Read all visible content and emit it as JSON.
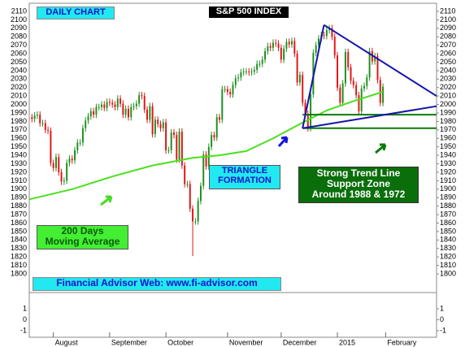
{
  "chart_data": {
    "type": "candlestick",
    "title": "S&P 500 INDEX",
    "subtitle": "DAILY CHART",
    "up_color": "#1f8f1f",
    "down_color": "#e01515",
    "xlim": [
      -1,
      151
    ],
    "ylim": [
      1795,
      2115
    ],
    "yticks": [
      1800,
      1810,
      1820,
      1830,
      1840,
      1850,
      1860,
      1870,
      1880,
      1890,
      1900,
      1910,
      1920,
      1930,
      1940,
      1950,
      1960,
      1970,
      1980,
      1990,
      2000,
      2010,
      2020,
      2030,
      2040,
      2050,
      2060,
      2070,
      2080,
      2090,
      2100,
      2110
    ],
    "xticks": [
      {
        "value": 8,
        "label": "August"
      },
      {
        "value": 29,
        "label": "September"
      },
      {
        "value": 50,
        "label": "October"
      },
      {
        "value": 73,
        "label": "November"
      },
      {
        "value": 93,
        "label": "December"
      },
      {
        "value": 114,
        "label": "2015"
      },
      {
        "value": 132,
        "label": "February"
      }
    ],
    "lower_panel": {
      "ylim": [
        -1.6,
        2.4
      ],
      "yticks": [
        1,
        0,
        -1
      ]
    },
    "open": [
      1985,
      1983,
      1987,
      1988,
      1978,
      1978,
      1970,
      1969,
      1931,
      1925,
      1938,
      1920,
      1909,
      1910,
      1931,
      1936,
      1934,
      1946,
      1955,
      1955,
      1972,
      1981,
      1986,
      1992,
      1988,
      1997,
      1997,
      2000,
      1996,
      2003,
      2002,
      2000,
      1997,
      2007,
      2001,
      1988,
      1995,
      1985,
      1997,
      1998,
      2001,
      2011,
      2010,
      1994,
      1982,
      1998,
      1965,
      1982,
      1977,
      1972,
      1979,
      1946,
      1946,
      1967,
      1964,
      1935,
      1968,
      1928,
      1906,
      1906,
      1877,
      1862,
      1862,
      1886,
      1904,
      1941,
      1927,
      1950,
      1964,
      1961,
      1985,
      1982,
      2018,
      2018,
      2015,
      2012,
      2023,
      2031,
      2032,
      2038,
      2039,
      2039,
      2038,
      2039,
      2041,
      2048,
      2048,
      2053,
      2063,
      2069,
      2067,
      2073,
      2072,
      2067,
      2053,
      2066,
      2074,
      2071,
      2075,
      2060,
      2026,
      2035,
      2002,
      1989,
      1972,
      2012,
      2061,
      2070,
      2078,
      2082,
      2081,
      2088,
      2090,
      2080,
      2058,
      2020,
      2002,
      2025,
      2062,
      2044,
      2028,
      2023,
      2011,
      1992,
      2019,
      2022,
      2032,
      2063,
      2051,
      2057,
      2029,
      2002
    ],
    "high": [
      1989,
      1991,
      1992,
      1992,
      1982,
      1982,
      1974,
      1973,
      1935,
      1942,
      1942,
      1924,
      1914,
      1935,
      1940,
      1940,
      1950,
      1959,
      1959,
      1976,
      1985,
      1990,
      1996,
      1996,
      2001,
      2001,
      2004,
      2004,
      2007,
      2007,
      2006,
      2004,
      2011,
      2011,
      2005,
      1999,
      1999,
      2001,
      2002,
      2005,
      2015,
      2015,
      2014,
      1998,
      2002,
      2002,
      1986,
      1986,
      1981,
      1983,
      1983,
      1950,
      1971,
      1971,
      1968,
      1972,
      1972,
      1932,
      1910,
      1910,
      1881,
      1866,
      1890,
      1908,
      1945,
      1945,
      1954,
      1968,
      1968,
      1989,
      1989,
      2022,
      2022,
      2022,
      2019,
      2027,
      2035,
      2036,
      2042,
      2043,
      2043,
      2043,
      2043,
      2045,
      2052,
      2052,
      2057,
      2067,
      2073,
      2073,
      2077,
      2077,
      2076,
      2071,
      2070,
      2078,
      2078,
      2079,
      2079,
      2064,
      2039,
      2039,
      2006,
      1993,
      2016,
      2065,
      2074,
      2082,
      2086,
      2086,
      2092,
      2094,
      2094,
      2084,
      2062,
      2024,
      2029,
      2066,
      2066,
      2048,
      2032,
      2027,
      2015,
      2023,
      2026,
      2036,
      2067,
      2067,
      2061,
      2061,
      2033,
      2025
    ],
    "low": [
      1979,
      1979,
      1983,
      1974,
      1974,
      1966,
      1965,
      1927,
      1921,
      1921,
      1916,
      1905,
      1905,
      1906,
      1927,
      1930,
      1930,
      1942,
      1951,
      1951,
      1968,
      1977,
      1982,
      1984,
      1984,
      1993,
      1993,
      1992,
      1992,
      1998,
      1996,
      1993,
      1993,
      1997,
      1984,
      1984,
      1981,
      1981,
      1993,
      1994,
      1997,
      2006,
      1990,
      1978,
      1978,
      1961,
      1961,
      1973,
      1968,
      1968,
      1942,
      1942,
      1942,
      1960,
      1931,
      1931,
      1924,
      1902,
      1902,
      1873,
      1821,
      1858,
      1858,
      1882,
      1900,
      1923,
      1923,
      1946,
      1957,
      1957,
      1978,
      1978,
      2014,
      2011,
      2008,
      2008,
      2019,
      2027,
      2028,
      2034,
      2035,
      2034,
      2034,
      2035,
      2037,
      2044,
      2044,
      2049,
      2059,
      2063,
      2063,
      2068,
      2063,
      2049,
      2049,
      2062,
      2067,
      2067,
      2056,
      2022,
      2022,
      1998,
      1985,
      1968,
      1968,
      2008,
      2057,
      2066,
      2074,
      2077,
      2077,
      2084,
      2076,
      2054,
      2016,
      1998,
      1998,
      2021,
      2040,
      2024,
      2019,
      2007,
      1988,
      1988,
      2015,
      2018,
      2028,
      2047,
      2047,
      2025,
      1998,
      1998
    ],
    "close": [
      1983,
      1987,
      1988,
      1978,
      1978,
      1970,
      1969,
      1931,
      1925,
      1938,
      1920,
      1909,
      1910,
      1931,
      1936,
      1934,
      1946,
      1955,
      1955,
      1972,
      1981,
      1986,
      1992,
      1988,
      1997,
      1997,
      2000,
      1996,
      2003,
      2002,
      2000,
      1997,
      2007,
      2001,
      1988,
      1995,
      1985,
      1997,
      1998,
      2001,
      2011,
      2010,
      1994,
      1982,
      1998,
      1965,
      1982,
      1977,
      1972,
      1979,
      1946,
      1946,
      1967,
      1964,
      1935,
      1968,
      1928,
      1906,
      1906,
      1877,
      1862,
      1862,
      1886,
      1904,
      1941,
      1927,
      1950,
      1964,
      1961,
      1985,
      1982,
      2018,
      2018,
      2015,
      2012,
      2023,
      2031,
      2032,
      2038,
      2039,
      2039,
      2038,
      2039,
      2041,
      2048,
      2048,
      2053,
      2063,
      2069,
      2067,
      2073,
      2072,
      2067,
      2053,
      2066,
      2074,
      2071,
      2075,
      2060,
      2026,
      2035,
      2002,
      1989,
      1972,
      2012,
      2061,
      2070,
      2078,
      2082,
      2081,
      2088,
      2090,
      2080,
      2058,
      2020,
      2002,
      2025,
      2062,
      2044,
      2028,
      2023,
      2011,
      1992,
      2019,
      2022,
      2032,
      2063,
      2051,
      2057,
      2029,
      2002,
      2021
    ],
    "moving_average": {
      "color": "#4be01f",
      "x": [
        -1,
        15,
        30,
        45,
        60,
        70,
        80,
        90,
        100,
        110,
        120,
        131
      ],
      "values": [
        1888,
        1900,
        1915,
        1928,
        1937,
        1940,
        1945,
        1960,
        1977,
        1993,
        2004,
        2015
      ]
    },
    "trend_lines": {
      "color": "#1414aa",
      "lines": [
        {
          "x": [
            101,
            109
          ],
          "y": [
            1972,
            2094
          ]
        },
        {
          "x": [
            109,
            151
          ],
          "y": [
            2094,
            2010
          ]
        },
        {
          "x": [
            101,
            151
          ],
          "y": [
            1972,
            1998
          ]
        }
      ]
    },
    "support_lines": {
      "color": "#0a7a0a",
      "x": [
        101,
        151
      ],
      "levels": [
        1988,
        1972
      ]
    },
    "annotations": {
      "triangle": [
        "TRIANGLE",
        "FORMATION"
      ],
      "support": [
        "Strong Trend Line",
        "Support Zone",
        "Around 1988 & 1972"
      ],
      "average": [
        "200 Days",
        "Moving Average"
      ],
      "website": "Financial Advisor Web: www.fi-advisor.com"
    }
  }
}
